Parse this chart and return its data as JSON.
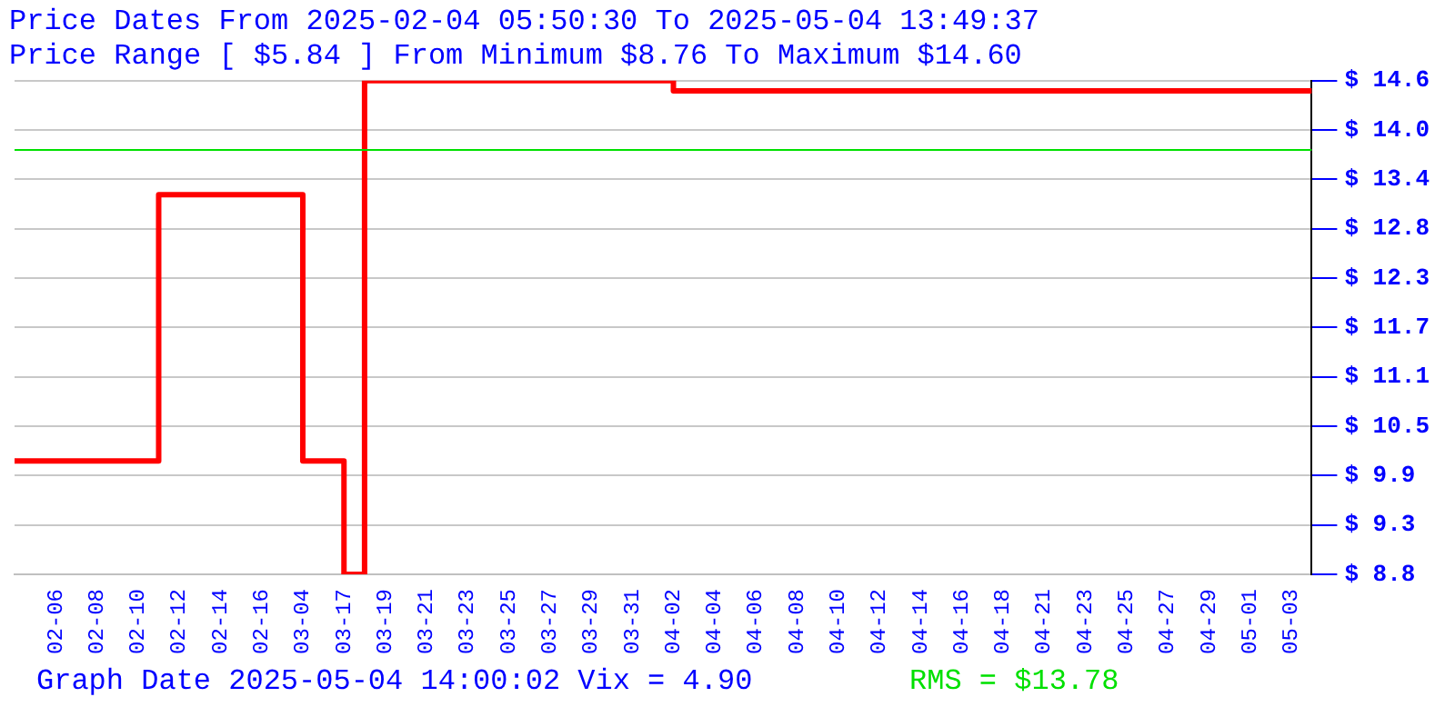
{
  "chart_data": {
    "type": "step",
    "title": "Price Dates From 2025-02-04 05:50:30 To 2025-05-04 13:49:37",
    "subtitle": "Price Range [ $5.84 ] From Minimum $8.76 To Maximum $14.60",
    "categories": [
      null,
      null,
      "02-06",
      null,
      "02-08",
      null,
      "02-10",
      null,
      "02-12",
      null,
      "02-14",
      null,
      "02-16",
      null,
      "03-04",
      null,
      "03-17",
      null,
      "03-19",
      null,
      "03-21",
      null,
      "03-23",
      null,
      "03-25",
      null,
      "03-27",
      null,
      "03-29",
      null,
      "03-31",
      null,
      "04-02",
      null,
      "04-04",
      null,
      "04-06",
      null,
      "04-08",
      null,
      "04-10",
      null,
      "04-12",
      null,
      "04-14",
      null,
      "04-16",
      null,
      "04-18",
      null,
      "04-21",
      null,
      "04-23",
      null,
      "04-25",
      null,
      "04-27",
      null,
      "04-29",
      null,
      "05-01",
      null,
      "05-03",
      null
    ],
    "series": [
      {
        "color": "#ff0000",
        "values": [
          10.1,
          10.1,
          10.1,
          10.1,
          10.1,
          10.1,
          10.1,
          13.25,
          13.25,
          13.25,
          13.25,
          13.25,
          13.25,
          13.25,
          10.1,
          10.1,
          8.76,
          14.6,
          14.6,
          14.6,
          14.6,
          14.6,
          14.6,
          14.6,
          14.6,
          14.6,
          14.6,
          14.6,
          14.6,
          14.6,
          14.6,
          14.6,
          14.48,
          14.48,
          14.48,
          14.48,
          14.48,
          14.48,
          14.48,
          14.48,
          14.48,
          14.48,
          14.48,
          14.48,
          14.48,
          14.48,
          14.48,
          14.48,
          14.48,
          14.48,
          14.48,
          14.48,
          14.48,
          14.48,
          14.48,
          14.48,
          14.48,
          14.48,
          14.48,
          14.48,
          14.48,
          14.48,
          14.48,
          14.48
        ]
      }
    ],
    "ylim": [
      8.76,
      14.6
    ],
    "yticks": [
      {
        "value": 8.76,
        "label": "$ 8.8"
      },
      {
        "value": 9.344,
        "label": "$ 9.3"
      },
      {
        "value": 9.928,
        "label": "$ 9.9"
      },
      {
        "value": 10.512,
        "label": "$ 10.5"
      },
      {
        "value": 11.096,
        "label": "$ 11.1"
      },
      {
        "value": 11.68,
        "label": "$ 11.7"
      },
      {
        "value": 12.264,
        "label": "$ 12.3"
      },
      {
        "value": 12.848,
        "label": "$ 12.8"
      },
      {
        "value": 13.432,
        "label": "$ 13.4"
      },
      {
        "value": 14.016,
        "label": "$ 14.0"
      },
      {
        "value": 14.6,
        "label": "$ 14.6"
      }
    ],
    "grid": "y",
    "legend": false,
    "ref_lines": [
      {
        "axis": "y",
        "value": 13.78,
        "label": "RMS = $13.78",
        "color": "#00e000"
      }
    ],
    "annotations": [
      "Graph Date 2025-05-04 14:00:02 Vix = 4.90"
    ]
  }
}
